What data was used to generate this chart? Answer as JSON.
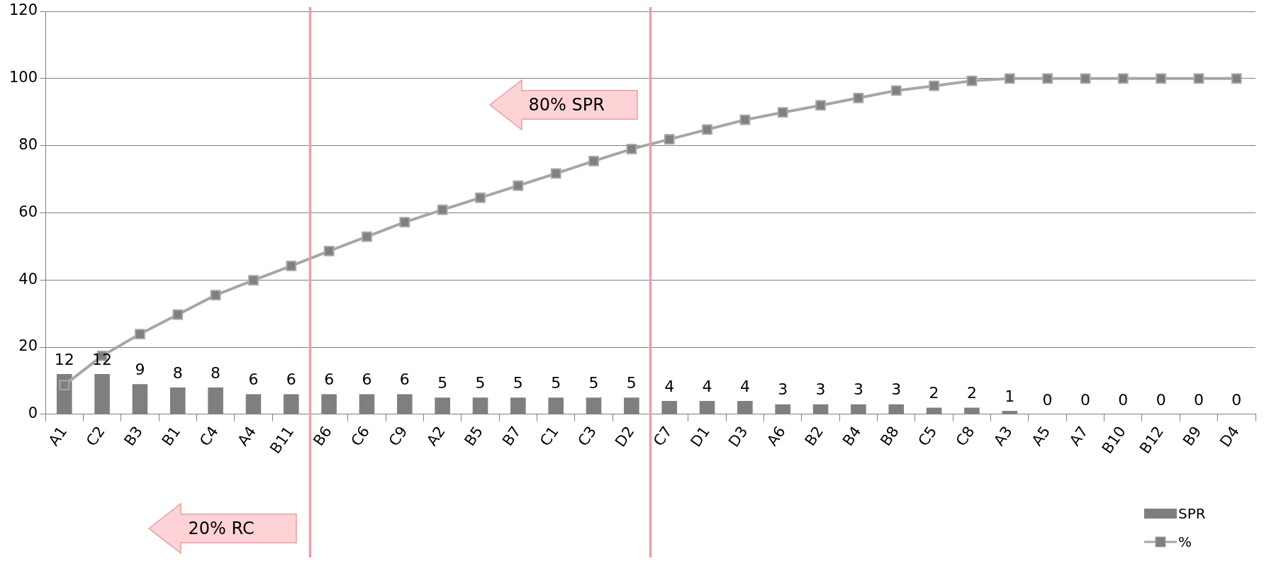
{
  "chart_data": {
    "type": "bar",
    "categories": [
      "A1",
      "C2",
      "B3",
      "B1",
      "C4",
      "A4",
      "B11",
      "B6",
      "C6",
      "C9",
      "A2",
      "B5",
      "B7",
      "C1",
      "C3",
      "D2",
      "C7",
      "D1",
      "D3",
      "A6",
      "B2",
      "B4",
      "B8",
      "C5",
      "C8",
      "A3",
      "A5",
      "A7",
      "B10",
      "B12",
      "B9",
      "D4"
    ],
    "series": [
      {
        "name": "SPR",
        "color": "#7f7f7f",
        "values": [
          12,
          12,
          9,
          8,
          8,
          6,
          6,
          6,
          6,
          6,
          5,
          5,
          5,
          5,
          5,
          5,
          4,
          4,
          4,
          3,
          3,
          3,
          3,
          2,
          2,
          1,
          0,
          0,
          0,
          0,
          0,
          0
        ],
        "value_labels": [
          "12",
          "12",
          "9",
          "8",
          "8",
          "6",
          "6",
          "6",
          "6",
          "6",
          "5",
          "5",
          "5",
          "5",
          "5",
          "5",
          "4",
          "4",
          "4",
          "3",
          "3",
          "3",
          "3",
          "2",
          "2",
          "1",
          "0",
          "0",
          "0",
          "0",
          "0",
          "0"
        ]
      },
      {
        "name": "%",
        "type": "line",
        "color": "#a6a6a6",
        "marker": "square",
        "values": [
          8.7,
          17.4,
          23.9,
          29.7,
          35.5,
          39.9,
          44.2,
          48.6,
          52.9,
          57.2,
          60.9,
          64.5,
          68.1,
          71.7,
          75.4,
          79.0,
          81.9,
          84.8,
          87.7,
          89.9,
          92.0,
          94.2,
          96.4,
          97.8,
          99.3,
          100,
          100,
          100,
          100,
          100,
          100,
          100
        ]
      }
    ],
    "ylim": [
      0,
      120
    ],
    "yticks": [
      0,
      20,
      40,
      60,
      80,
      100,
      120
    ],
    "grid": "y",
    "legend": "bottom right",
    "annotations": [
      "20% RC",
      "80% SPR"
    ]
  }
}
